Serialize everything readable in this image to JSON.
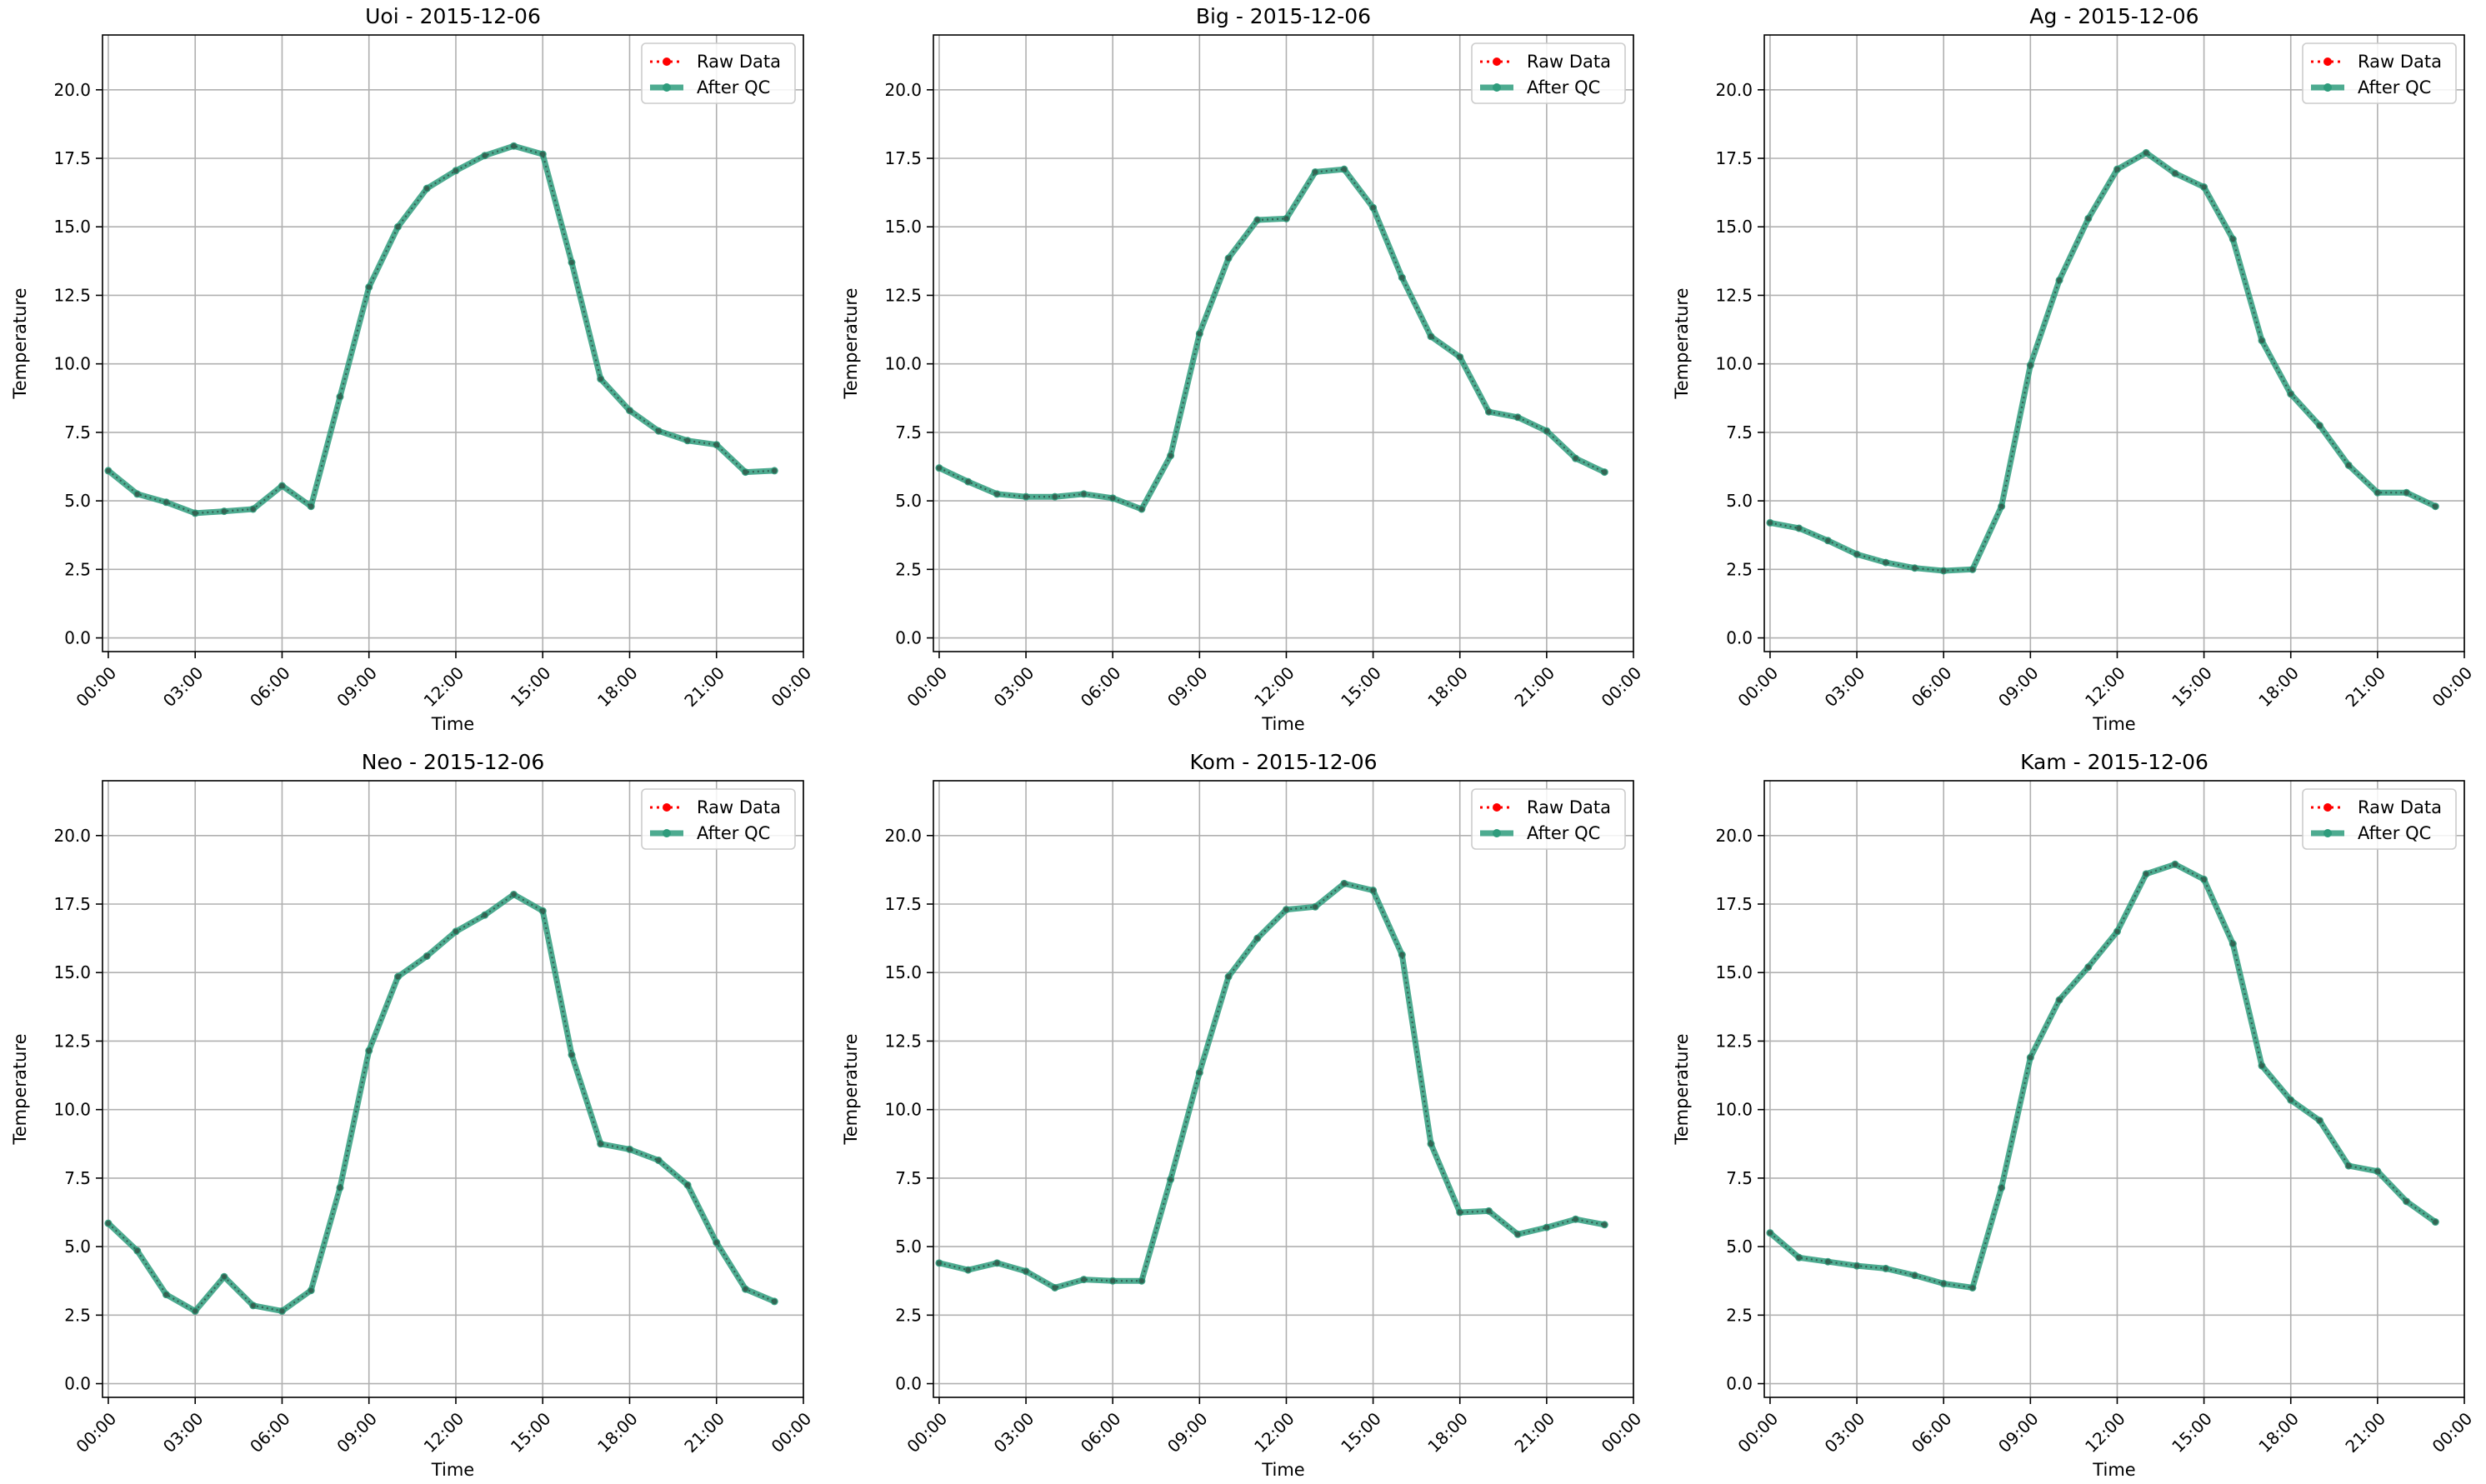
{
  "chart_data": [
    {
      "type": "line",
      "title": "Uoi - 2015-12-06",
      "xlabel": "Time",
      "ylabel": "Temperature",
      "x_ticks": [
        "00:00",
        "03:00",
        "06:00",
        "09:00",
        "12:00",
        "15:00",
        "18:00",
        "21:00",
        "00:00"
      ],
      "xlim": [
        -0.2,
        24.0
      ],
      "ylim": [
        -0.5,
        22.0
      ],
      "y_ticks": [
        0.0,
        2.5,
        5.0,
        7.5,
        10.0,
        12.5,
        15.0,
        17.5,
        20.0
      ],
      "grid": true,
      "legend": "top-right",
      "x_hours": [
        0,
        1,
        2,
        3,
        4,
        5,
        6,
        7,
        8,
        9,
        10,
        11,
        12,
        13,
        14,
        15,
        16,
        17,
        18,
        19,
        20,
        21,
        22,
        23
      ],
      "series": [
        {
          "name": "Raw Data",
          "color": "#ff0000",
          "values": [
            6.1,
            5.25,
            4.95,
            4.55,
            4.62,
            4.7,
            5.55,
            4.8,
            8.8,
            12.8,
            15.0,
            16.4,
            17.05,
            17.6,
            17.95,
            17.65,
            13.7,
            9.45,
            8.3,
            7.55,
            7.2,
            7.05,
            6.05,
            6.1
          ]
        },
        {
          "name": "After QC",
          "color": "#2e9c7c",
          "values": [
            6.1,
            5.25,
            4.95,
            4.55,
            4.62,
            4.7,
            5.55,
            4.8,
            8.8,
            12.8,
            15.0,
            16.4,
            17.05,
            17.6,
            17.95,
            17.65,
            13.7,
            9.45,
            8.3,
            7.55,
            7.2,
            7.05,
            6.05,
            6.1
          ]
        }
      ]
    },
    {
      "type": "line",
      "title": "Big - 2015-12-06",
      "xlabel": "Time",
      "ylabel": "Temperature",
      "x_ticks": [
        "00:00",
        "03:00",
        "06:00",
        "09:00",
        "12:00",
        "15:00",
        "18:00",
        "21:00",
        "00:00"
      ],
      "xlim": [
        -0.2,
        24.0
      ],
      "ylim": [
        -0.5,
        22.0
      ],
      "y_ticks": [
        0.0,
        2.5,
        5.0,
        7.5,
        10.0,
        12.5,
        15.0,
        17.5,
        20.0
      ],
      "grid": true,
      "legend": "top-right",
      "x_hours": [
        0,
        1,
        2,
        3,
        4,
        5,
        6,
        7,
        8,
        9,
        10,
        11,
        12,
        13,
        14,
        15,
        16,
        17,
        18,
        19,
        20,
        21,
        22,
        23
      ],
      "series": [
        {
          "name": "Raw Data",
          "color": "#ff0000",
          "values": [
            6.2,
            5.7,
            5.25,
            5.15,
            5.15,
            5.25,
            5.1,
            4.7,
            6.65,
            11.1,
            13.85,
            15.25,
            15.3,
            17.0,
            17.1,
            15.7,
            13.15,
            11.0,
            10.25,
            8.25,
            8.05,
            7.55,
            6.55,
            6.05
          ]
        },
        {
          "name": "After QC",
          "color": "#2e9c7c",
          "values": [
            6.2,
            5.7,
            5.25,
            5.15,
            5.15,
            5.25,
            5.1,
            4.7,
            6.65,
            11.1,
            13.85,
            15.25,
            15.3,
            17.0,
            17.1,
            15.7,
            13.15,
            11.0,
            10.25,
            8.25,
            8.05,
            7.55,
            6.55,
            6.05
          ]
        }
      ]
    },
    {
      "type": "line",
      "title": "Ag - 2015-12-06",
      "xlabel": "Time",
      "ylabel": "Temperature",
      "x_ticks": [
        "00:00",
        "03:00",
        "06:00",
        "09:00",
        "12:00",
        "15:00",
        "18:00",
        "21:00",
        "00:00"
      ],
      "xlim": [
        -0.2,
        24.0
      ],
      "ylim": [
        -0.5,
        22.0
      ],
      "y_ticks": [
        0.0,
        2.5,
        5.0,
        7.5,
        10.0,
        12.5,
        15.0,
        17.5,
        20.0
      ],
      "grid": true,
      "legend": "top-right",
      "x_hours": [
        0,
        1,
        2,
        3,
        4,
        5,
        6,
        7,
        8,
        9,
        10,
        11,
        12,
        13,
        14,
        15,
        16,
        17,
        18,
        19,
        20,
        21,
        22,
        23
      ],
      "series": [
        {
          "name": "Raw Data",
          "color": "#ff0000",
          "values": [
            4.2,
            4.0,
            3.55,
            3.05,
            2.75,
            2.55,
            2.45,
            2.5,
            4.8,
            9.95,
            13.05,
            15.3,
            17.1,
            17.7,
            16.95,
            16.45,
            14.55,
            10.85,
            8.9,
            7.75,
            6.3,
            5.3,
            5.3,
            4.8
          ]
        },
        {
          "name": "After QC",
          "color": "#2e9c7c",
          "values": [
            4.2,
            4.0,
            3.55,
            3.05,
            2.75,
            2.55,
            2.45,
            2.5,
            4.8,
            9.95,
            13.05,
            15.3,
            17.1,
            17.7,
            16.95,
            16.45,
            14.55,
            10.85,
            8.9,
            7.75,
            6.3,
            5.3,
            5.3,
            4.8
          ]
        }
      ]
    },
    {
      "type": "line",
      "title": "Neo - 2015-12-06",
      "xlabel": "Time",
      "ylabel": "Temperature",
      "x_ticks": [
        "00:00",
        "03:00",
        "06:00",
        "09:00",
        "12:00",
        "15:00",
        "18:00",
        "21:00",
        "00:00"
      ],
      "xlim": [
        -0.2,
        24.0
      ],
      "ylim": [
        -0.5,
        22.0
      ],
      "y_ticks": [
        0.0,
        2.5,
        5.0,
        7.5,
        10.0,
        12.5,
        15.0,
        17.5,
        20.0
      ],
      "grid": true,
      "legend": "top-right",
      "x_hours": [
        0,
        1,
        2,
        3,
        4,
        5,
        6,
        7,
        8,
        9,
        10,
        11,
        12,
        13,
        14,
        15,
        16,
        17,
        18,
        19,
        20,
        21,
        22,
        23
      ],
      "series": [
        {
          "name": "Raw Data",
          "color": "#ff0000",
          "values": [
            5.85,
            4.85,
            3.25,
            2.65,
            3.9,
            2.85,
            2.65,
            3.4,
            7.15,
            12.15,
            14.85,
            15.6,
            16.5,
            17.1,
            17.85,
            17.25,
            12.0,
            8.75,
            8.55,
            8.15,
            7.25,
            5.15,
            3.45,
            3.0
          ]
        },
        {
          "name": "After QC",
          "color": "#2e9c7c",
          "values": [
            5.85,
            4.85,
            3.25,
            2.65,
            3.9,
            2.85,
            2.65,
            3.4,
            7.15,
            12.15,
            14.85,
            15.6,
            16.5,
            17.1,
            17.85,
            17.25,
            12.0,
            8.75,
            8.55,
            8.15,
            7.25,
            5.15,
            3.45,
            3.0
          ]
        }
      ]
    },
    {
      "type": "line",
      "title": "Kom - 2015-12-06",
      "xlabel": "Time",
      "ylabel": "Temperature",
      "x_ticks": [
        "00:00",
        "03:00",
        "06:00",
        "09:00",
        "12:00",
        "15:00",
        "18:00",
        "21:00",
        "00:00"
      ],
      "xlim": [
        -0.2,
        24.0
      ],
      "ylim": [
        -0.5,
        22.0
      ],
      "y_ticks": [
        0.0,
        2.5,
        5.0,
        7.5,
        10.0,
        12.5,
        15.0,
        17.5,
        20.0
      ],
      "grid": true,
      "legend": "top-right",
      "x_hours": [
        0,
        1,
        2,
        3,
        4,
        5,
        6,
        7,
        8,
        9,
        10,
        11,
        12,
        13,
        14,
        15,
        16,
        17,
        18,
        19,
        20,
        21,
        22,
        23
      ],
      "series": [
        {
          "name": "Raw Data",
          "color": "#ff0000",
          "values": [
            4.4,
            4.15,
            4.4,
            4.1,
            3.5,
            3.8,
            3.75,
            3.75,
            7.45,
            11.35,
            14.85,
            16.25,
            17.3,
            17.4,
            18.25,
            18.0,
            15.65,
            8.75,
            6.25,
            6.3,
            5.45,
            5.7,
            6.0,
            5.8
          ]
        },
        {
          "name": "After QC",
          "color": "#2e9c7c",
          "values": [
            4.4,
            4.15,
            4.4,
            4.1,
            3.5,
            3.8,
            3.75,
            3.75,
            7.45,
            11.35,
            14.85,
            16.25,
            17.3,
            17.4,
            18.25,
            18.0,
            15.65,
            8.75,
            6.25,
            6.3,
            5.45,
            5.7,
            6.0,
            5.8
          ]
        }
      ]
    },
    {
      "type": "line",
      "title": "Kam - 2015-12-06",
      "xlabel": "Time",
      "ylabel": "Temperature",
      "x_ticks": [
        "00:00",
        "03:00",
        "06:00",
        "09:00",
        "12:00",
        "15:00",
        "18:00",
        "21:00",
        "00:00"
      ],
      "xlim": [
        -0.2,
        24.0
      ],
      "ylim": [
        -0.5,
        22.0
      ],
      "y_ticks": [
        0.0,
        2.5,
        5.0,
        7.5,
        10.0,
        12.5,
        15.0,
        17.5,
        20.0
      ],
      "grid": true,
      "legend": "top-right",
      "x_hours": [
        0,
        1,
        2,
        3,
        4,
        5,
        6,
        7,
        8,
        9,
        10,
        11,
        12,
        13,
        14,
        15,
        16,
        17,
        18,
        19,
        20,
        21,
        22,
        23
      ],
      "series": [
        {
          "name": "Raw Data",
          "color": "#ff0000",
          "values": [
            5.5,
            4.6,
            4.45,
            4.3,
            4.2,
            3.95,
            3.65,
            3.5,
            7.15,
            11.9,
            14.0,
            15.2,
            16.5,
            18.6,
            18.95,
            18.4,
            16.05,
            11.6,
            10.35,
            9.6,
            7.95,
            7.75,
            6.65,
            5.9
          ]
        },
        {
          "name": "After QC",
          "color": "#2e9c7c",
          "values": [
            5.5,
            4.6,
            4.45,
            4.3,
            4.2,
            3.95,
            3.65,
            3.5,
            7.15,
            11.9,
            14.0,
            15.2,
            16.5,
            18.6,
            18.95,
            18.4,
            16.05,
            11.6,
            10.35,
            9.6,
            7.95,
            7.75,
            6.65,
            5.9
          ]
        }
      ]
    }
  ]
}
